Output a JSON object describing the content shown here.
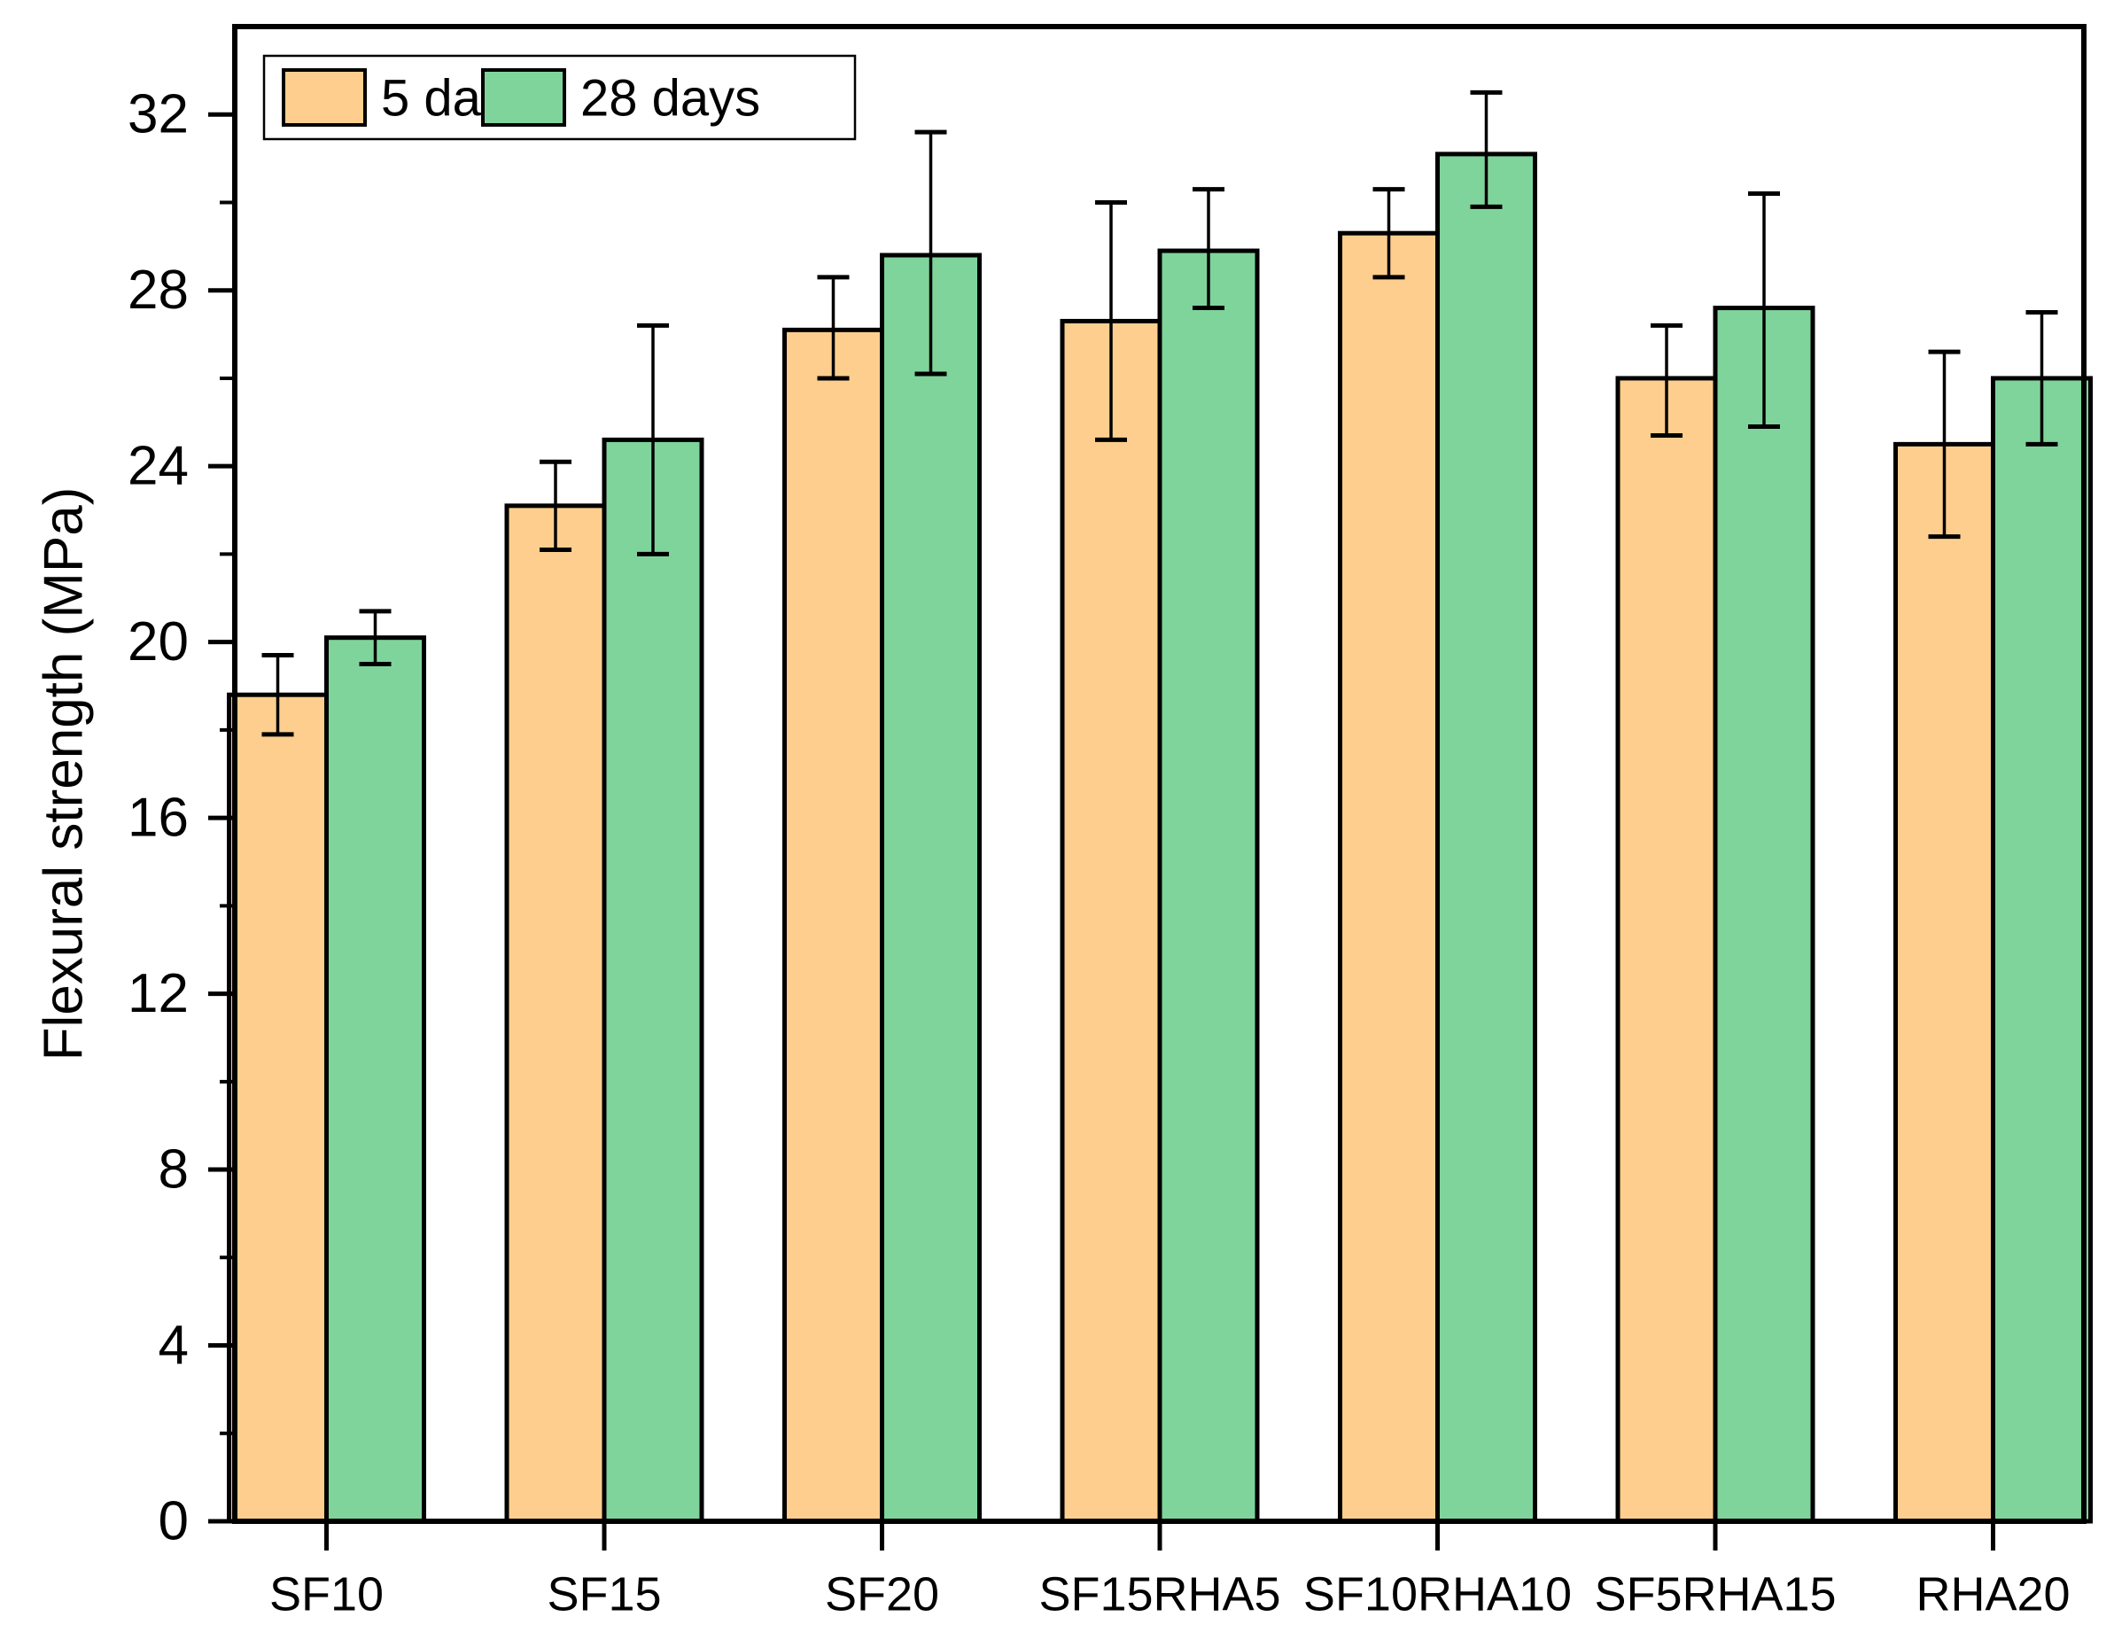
{
  "figure": {
    "background": "#FFFFFF",
    "frame_color": "#000000"
  },
  "chart_data": {
    "type": "bar",
    "title": "",
    "xlabel": "",
    "ylabel": "Flexural strength (MPa)",
    "categories": [
      "SF10",
      "SF15",
      "SF20",
      "SF15RHA5",
      "SF10RHA10",
      "SF5RHA15",
      "RHA20"
    ],
    "series": [
      {
        "name": "5 days",
        "color": "#FDCE8D",
        "values": [
          18.8,
          23.1,
          27.1,
          27.3,
          29.3,
          26.0,
          24.5
        ],
        "err_plus": [
          0.9,
          1.0,
          1.2,
          2.7,
          1.0,
          1.2,
          2.1
        ],
        "err_minus": [
          0.9,
          1.0,
          1.1,
          2.7,
          1.0,
          1.3,
          2.1
        ]
      },
      {
        "name": "28 days",
        "color": "#7FD49B",
        "values": [
          20.1,
          24.6,
          28.8,
          28.9,
          31.1,
          27.6,
          26.0
        ],
        "err_plus": [
          0.6,
          2.6,
          2.8,
          1.4,
          1.4,
          2.6,
          1.5
        ],
        "err_minus": [
          0.6,
          2.6,
          2.7,
          1.3,
          1.2,
          2.7,
          1.5
        ]
      }
    ],
    "ylim": [
      0,
      34
    ],
    "yticks_major": [
      0,
      4,
      8,
      12,
      16,
      20,
      24,
      28,
      32
    ],
    "yticks_minor": [
      2,
      6,
      10,
      14,
      18,
      22,
      26,
      30
    ],
    "grid": false,
    "legend_position": "top-left",
    "bar_border_color": "#000000",
    "error_bar_color": "#000000"
  }
}
